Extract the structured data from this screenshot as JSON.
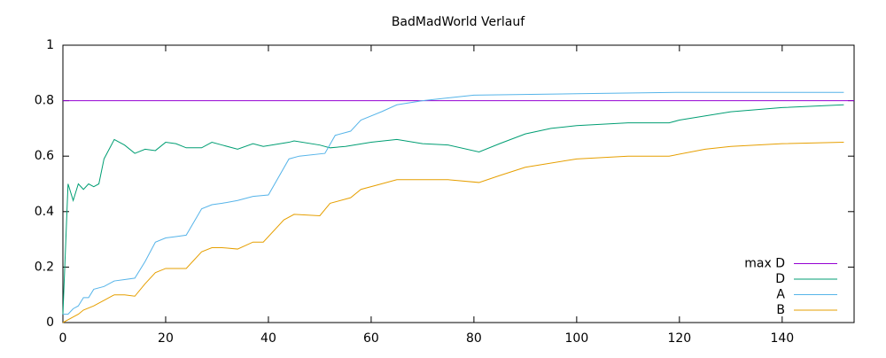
{
  "chart_data": {
    "type": "line",
    "title": "BadMadWorld Verlauf",
    "xlim": [
      0,
      154
    ],
    "xticks": [
      0,
      20,
      40,
      60,
      80,
      100,
      120,
      140
    ],
    "ylim": [
      0,
      1
    ],
    "yticks": [
      0,
      0.2,
      0.4,
      0.6,
      0.8,
      1
    ],
    "legend": "bottom-right",
    "series": [
      {
        "name": "max D",
        "color": "#9400d3",
        "x": [
          0,
          154
        ],
        "values": [
          0.8,
          0.8
        ]
      },
      {
        "name": "D",
        "color": "#009e73",
        "x": [
          0,
          1,
          2,
          3,
          4,
          5,
          6,
          7,
          8,
          10,
          12,
          14,
          16,
          18,
          20,
          22,
          24,
          27,
          29,
          31,
          34,
          37,
          39,
          44,
          45,
          50,
          52,
          55,
          60,
          65,
          70,
          75,
          81,
          85,
          90,
          95,
          100,
          110,
          118,
          120,
          130,
          140,
          152
        ],
        "values": [
          0.03,
          0.5,
          0.44,
          0.5,
          0.48,
          0.5,
          0.49,
          0.5,
          0.59,
          0.66,
          0.64,
          0.61,
          0.625,
          0.62,
          0.65,
          0.645,
          0.63,
          0.63,
          0.65,
          0.64,
          0.625,
          0.645,
          0.635,
          0.65,
          0.655,
          0.64,
          0.63,
          0.635,
          0.65,
          0.66,
          0.645,
          0.64,
          0.615,
          0.645,
          0.68,
          0.7,
          0.71,
          0.72,
          0.72,
          0.73,
          0.76,
          0.775,
          0.785
        ]
      },
      {
        "name": "A",
        "color": "#56b4e9",
        "x": [
          0,
          1,
          2,
          3,
          4,
          5,
          6,
          8,
          10,
          12,
          14,
          16,
          18,
          20,
          22,
          24,
          27,
          29,
          31,
          34,
          37,
          40,
          44,
          46,
          51,
          53,
          56,
          58,
          62,
          65,
          70,
          80,
          100,
          120,
          152
        ],
        "values": [
          0.03,
          0.03,
          0.05,
          0.06,
          0.09,
          0.09,
          0.12,
          0.13,
          0.15,
          0.155,
          0.16,
          0.22,
          0.29,
          0.305,
          0.31,
          0.315,
          0.41,
          0.425,
          0.43,
          0.44,
          0.455,
          0.46,
          0.59,
          0.6,
          0.61,
          0.675,
          0.69,
          0.73,
          0.76,
          0.785,
          0.8,
          0.82,
          0.825,
          0.83,
          0.83
        ]
      },
      {
        "name": "B",
        "color": "#e69f00",
        "x": [
          0,
          2,
          3,
          4,
          6,
          8,
          10,
          12,
          14,
          16,
          18,
          20,
          22,
          24,
          27,
          29,
          31,
          34,
          37,
          39,
          43,
          45,
          50,
          52,
          56,
          58,
          62,
          65,
          75,
          81,
          85,
          90,
          100,
          110,
          118,
          125,
          130,
          140,
          152
        ],
        "values": [
          0.0,
          0.02,
          0.03,
          0.045,
          0.06,
          0.08,
          0.1,
          0.1,
          0.095,
          0.14,
          0.18,
          0.195,
          0.195,
          0.195,
          0.255,
          0.27,
          0.27,
          0.265,
          0.29,
          0.29,
          0.37,
          0.39,
          0.385,
          0.43,
          0.45,
          0.48,
          0.5,
          0.515,
          0.515,
          0.505,
          0.53,
          0.56,
          0.59,
          0.6,
          0.6,
          0.625,
          0.635,
          0.645,
          0.65
        ]
      }
    ]
  }
}
